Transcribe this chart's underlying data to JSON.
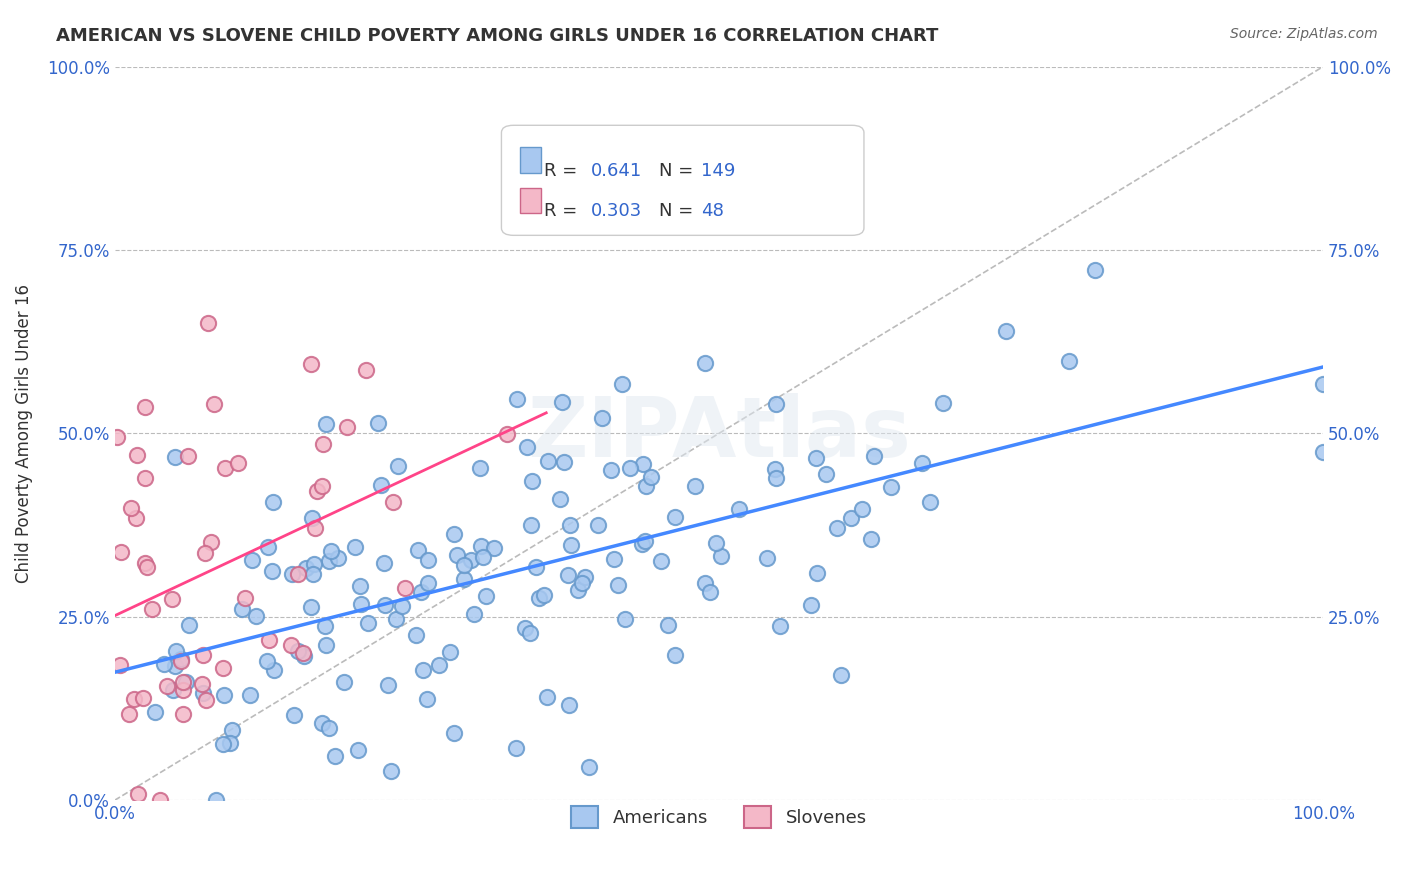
{
  "title": "AMERICAN VS SLOVENE CHILD POVERTY AMONG GIRLS UNDER 16 CORRELATION CHART",
  "source": "Source: ZipAtlas.com",
  "xlabel": "",
  "ylabel": "Child Poverty Among Girls Under 16",
  "xlim": [
    0,
    1
  ],
  "ylim": [
    0,
    1
  ],
  "xtick_labels": [
    "0.0%",
    "100.0%"
  ],
  "ytick_labels": [
    "0.0%",
    "25.0%",
    "50.0%",
    "75.0%",
    "100.0%"
  ],
  "ytick_positions": [
    0.0,
    0.25,
    0.5,
    0.75,
    1.0
  ],
  "xtick_positions": [
    0.0,
    1.0
  ],
  "americans_color": "#a8c8f0",
  "americans_edge_color": "#6699cc",
  "slovenes_color": "#f4b8c8",
  "slovenes_edge_color": "#cc6688",
  "regression_blue": "#4488ff",
  "regression_pink": "#ff4488",
  "dashed_line_color": "#bbbbbb",
  "R_american": 0.641,
  "N_american": 149,
  "R_slovene": 0.303,
  "N_slovene": 48,
  "legend_label_american": "Americans",
  "legend_label_slovene": "Slovenes",
  "watermark": "ZIPAtlas",
  "title_color": "#333333",
  "axis_label_color": "#333333",
  "tick_label_color": "#3366cc",
  "stat_value_color": "#3366cc",
  "stat_label_color": "#333333",
  "right_ytick_labels": [
    "100.0%",
    "75.0%",
    "50.0%",
    "25.0%"
  ],
  "right_ytick_positions": [
    1.0,
    0.75,
    0.5,
    0.25
  ],
  "right_ytick_colors": [
    "#3366cc",
    "#3366cc",
    "#3366cc",
    "#3366cc"
  ]
}
